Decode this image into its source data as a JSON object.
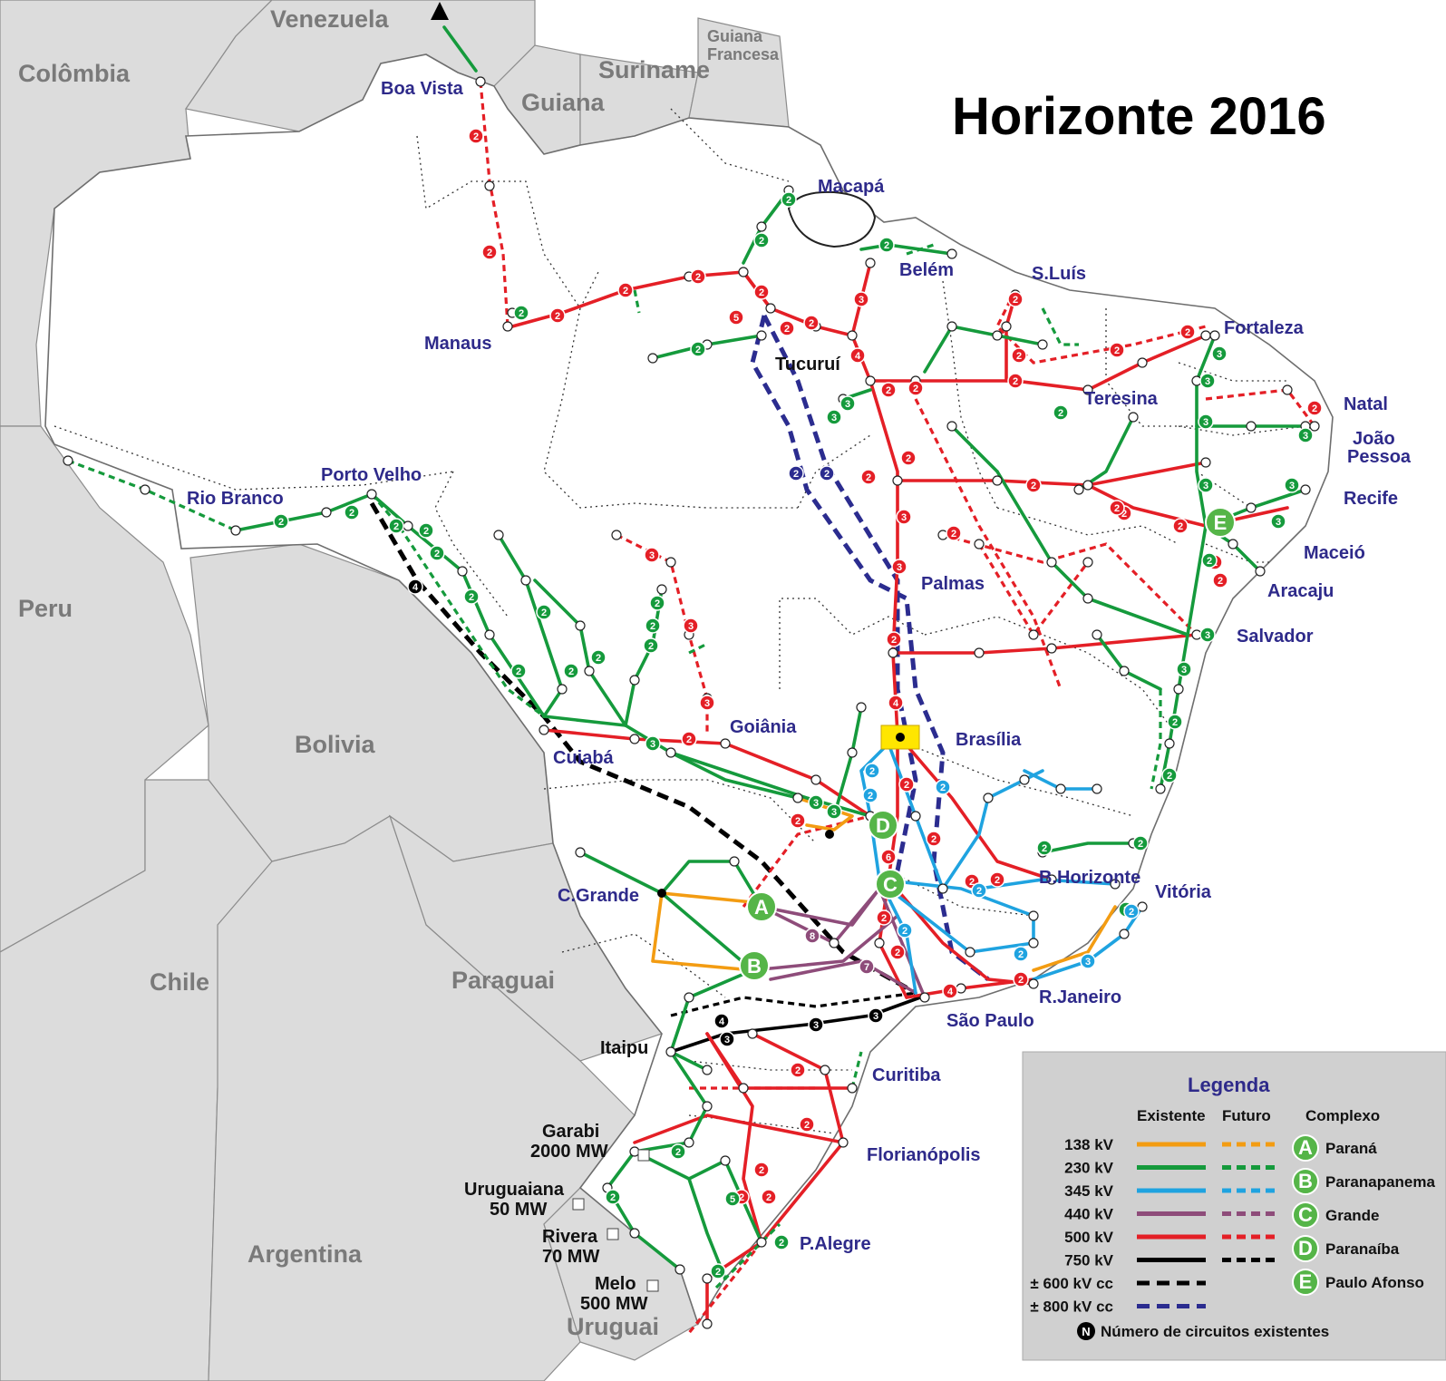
{
  "title": "Horizonte 2016",
  "countries": {
    "venezuela": "Venezuela",
    "colombia": "Colômbia",
    "guiana": "Guiana",
    "suriname": "Suriname",
    "guiana_francesa_1": "Guiana",
    "guiana_francesa_2": "Francesa",
    "peru": "Peru",
    "bolivia": "Bolivia",
    "chile": "Chile",
    "paraguai": "Paraguai",
    "argentina": "Argentina",
    "uruguai": "Uruguai"
  },
  "cities": {
    "boa_vista": "Boa Vista",
    "macapa": "Macapá",
    "belem": "Belém",
    "sluis": "S.Luís",
    "fortaleza": "Fortaleza",
    "manaus": "Manaus",
    "tucurui": "Tucuruí",
    "teresina": "Teresina",
    "natal": "Natal",
    "joao": "João",
    "pessoa": "Pessoa",
    "recife": "Recife",
    "maceio": "Maceió",
    "aracaju": "Aracaju",
    "salvador": "Salvador",
    "rio_branco": "Rio Branco",
    "porto_velho": "Porto Velho",
    "palmas": "Palmas",
    "goiania": "Goiânia",
    "brasilia": "Brasília",
    "cuiaba": "Cuiabá",
    "c_grande": "C.Grande",
    "b_horizonte": "B.Horizonte",
    "vitoria": "Vitória",
    "r_janeiro": "R.Janeiro",
    "sao_paulo": "São Paulo",
    "itaipu": "Itaipu",
    "curitiba": "Curitiba",
    "florianopolis": "Florianópolis",
    "p_alegre": "P.Alegre"
  },
  "interconnections": {
    "garabi_1": "Garabi",
    "garabi_2": "2000 MW",
    "uruguaiana_1": "Uruguaiana",
    "uruguaiana_2": "50 MW",
    "rivera_1": "Rivera",
    "rivera_2": "70 MW",
    "melo_1": "Melo",
    "melo_2": "500 MW"
  },
  "complexes_on_map": [
    "A",
    "B",
    "C",
    "D",
    "E"
  ],
  "legend": {
    "title": "Legenda",
    "col_existing": "Existente",
    "col_future": "Futuro",
    "col_complex": "Complexo",
    "voltages": [
      {
        "label": "138 kV",
        "color": "#f39c12",
        "style": "ac"
      },
      {
        "label": "230 kV",
        "color": "#159a3c",
        "style": "ac"
      },
      {
        "label": "345 kV",
        "color": "#1fa3e0",
        "style": "ac"
      },
      {
        "label": "440 kV",
        "color": "#8e4c7a",
        "style": "ac"
      },
      {
        "label": "500 kV",
        "color": "#e41f26",
        "style": "ac"
      },
      {
        "label": "750 kV",
        "color": "#000000",
        "style": "ac"
      },
      {
        "label": "± 600 kV cc",
        "color": "#000000",
        "style": "dc"
      },
      {
        "label": "± 800 kV cc",
        "color": "#2b2c8f",
        "style": "dc"
      }
    ],
    "complexes": [
      {
        "letter": "A",
        "name": "Paraná"
      },
      {
        "letter": "B",
        "name": "Paranapanema"
      },
      {
        "letter": "C",
        "name": "Grande"
      },
      {
        "letter": "D",
        "name": "Paranaíba"
      },
      {
        "letter": "E",
        "name": "Paulo Afonso"
      }
    ],
    "circuits_symbol": "N",
    "circuits_note": "Número de circuitos existentes"
  }
}
